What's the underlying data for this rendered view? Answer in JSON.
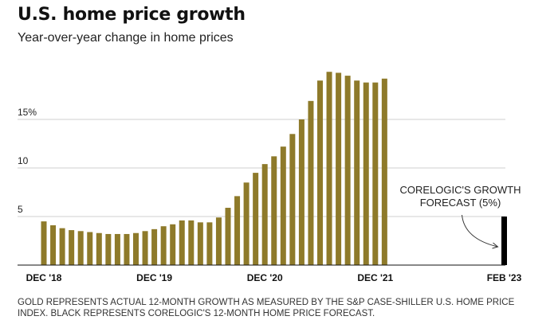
{
  "title": "U.S. home price growth",
  "subtitle": "Year-over-year change in home prices",
  "footnote": "GOLD REPRESENTS ACTUAL 12-MONTH GROWTH AS MEASURED BY THE S&P CASE-SHILLER U.S. HOME PRICE INDEX. BLACK REPRESENTS CORELOGIC'S 12-MONTH HOME PRICE FORECAST.",
  "chart_data": {
    "type": "bar",
    "xlim": [
      0,
      50
    ],
    "ylim": [
      0,
      20
    ],
    "y_ticks": [
      {
        "value": 5,
        "label": "5"
      },
      {
        "value": 10,
        "label": "10"
      },
      {
        "value": 15,
        "label": "15%"
      }
    ],
    "x_ticks": [
      {
        "index": 0,
        "label": "DEC '18"
      },
      {
        "index": 12,
        "label": "DEC '19"
      },
      {
        "index": 24,
        "label": "DEC '20"
      },
      {
        "index": 36,
        "label": "DEC '21"
      },
      {
        "index": 50,
        "label": "FEB '23"
      }
    ],
    "series": [
      {
        "kind": "actual",
        "color": "#8e7a2a",
        "start_index": 0,
        "values": [
          4.5,
          4.1,
          3.8,
          3.6,
          3.5,
          3.4,
          3.3,
          3.2,
          3.2,
          3.2,
          3.3,
          3.5,
          3.7,
          4.0,
          4.2,
          4.6,
          4.6,
          4.4,
          4.4,
          4.9,
          5.9,
          7.1,
          8.5,
          9.5,
          10.4,
          11.2,
          12.2,
          13.5,
          15.0,
          16.9,
          19.0,
          19.9,
          19.8,
          19.5,
          19.0,
          18.8,
          18.8,
          19.2
        ]
      },
      {
        "kind": "forecast",
        "color": "#000000",
        "start_index": 50,
        "values": [
          5.0
        ]
      }
    ],
    "annotation": {
      "lines": [
        "CORELOGIC'S GROWTH",
        "FORECAST (5%)"
      ]
    }
  }
}
